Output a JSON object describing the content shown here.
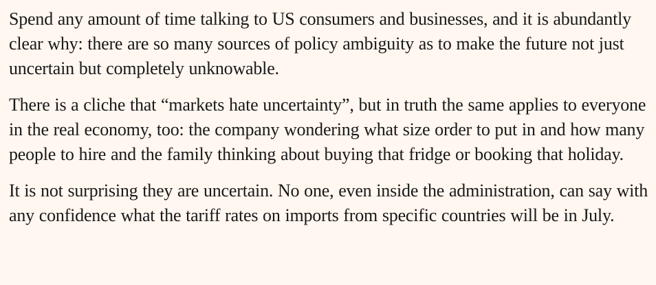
{
  "article": {
    "paragraphs": [
      "Spend any amount of time talking to US consumers and businesses, and it is abundantly clear why: there are so many sources of policy ambiguity as to make the future not just uncertain but completely unknowable.",
      "There is a cliche that “markets hate uncertainty”, but in truth the same applies to everyone in the real economy, too: the company wondering what size order to put in and how many people to hire and the family thinking about buying that fridge or booking that holiday.",
      "It is not surprising they are uncertain. No one, even inside the administration, can say with any confidence what the tariff rates on imports from specific countries will be in July."
    ]
  },
  "colors": {
    "background": "#fff7f0",
    "text": "#1a1817"
  }
}
